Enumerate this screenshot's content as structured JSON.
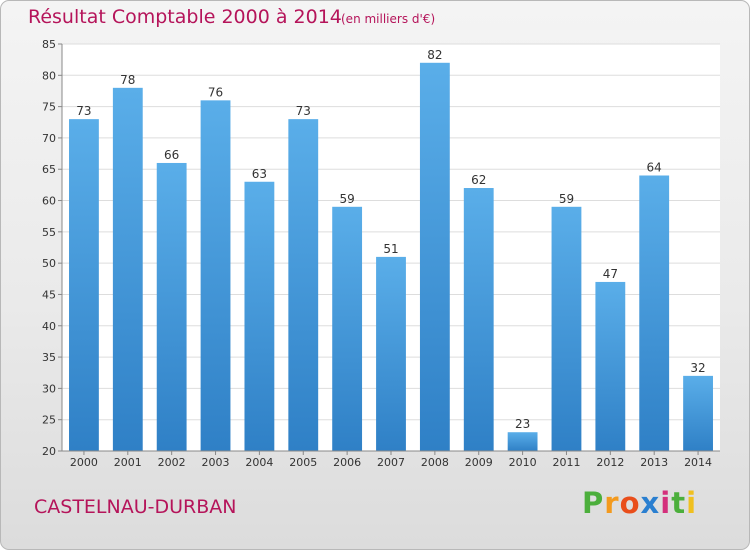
{
  "title": "Résultat Comptable 2000 à 2014",
  "subtitle": "(en milliers d'€)",
  "commune": "CASTELNAU-DURBAN",
  "logo": {
    "letters": [
      "P",
      "r",
      "o",
      "x",
      "i",
      "t",
      "i"
    ]
  },
  "colors": {
    "accent": "#b5145a",
    "bar_light": "#5aaee9",
    "bar_dark": "#2f80c6",
    "logo": [
      "#4caf3c",
      "#f39a1e",
      "#e94e1b",
      "#2a7fd0",
      "#d4307c",
      "#4caf3c",
      "#f0c020"
    ]
  },
  "chart_data": {
    "type": "bar",
    "categories": [
      "2000",
      "2001",
      "2002",
      "2003",
      "2004",
      "2005",
      "2006",
      "2007",
      "2008",
      "2009",
      "2010",
      "2011",
      "2012",
      "2013",
      "2014"
    ],
    "values": [
      73,
      78,
      66,
      76,
      63,
      73,
      59,
      51,
      82,
      62,
      23,
      59,
      47,
      64,
      32
    ],
    "ylim": [
      20,
      85
    ],
    "yticks": [
      20,
      25,
      30,
      35,
      40,
      45,
      50,
      55,
      60,
      65,
      70,
      75,
      80,
      85
    ],
    "grid": true
  }
}
